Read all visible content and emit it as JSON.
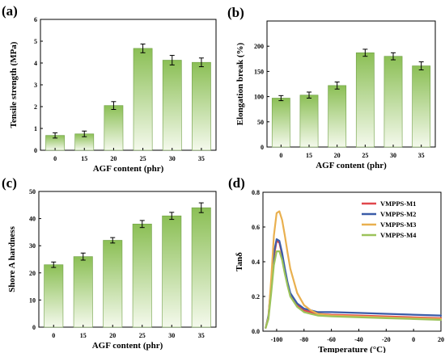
{
  "colors": {
    "bar_top": "#8bbf55",
    "bar_bottom": "#f4f9ec",
    "bar_stroke": "#6f9f45",
    "axis": "#000000"
  },
  "chart_data": [
    {
      "panel": "(a)",
      "type": "bar",
      "xlabel": "AGF content (phr)",
      "ylabel": "Tensile strength (MPa)",
      "categories": [
        "0",
        "15",
        "20",
        "25",
        "30",
        "35"
      ],
      "values": [
        0.68,
        0.75,
        2.05,
        4.67,
        4.13,
        4.03
      ],
      "errors": [
        0.12,
        0.13,
        0.18,
        0.2,
        0.22,
        0.2
      ],
      "ylim": [
        0,
        6
      ],
      "yticks": [
        0,
        1,
        2,
        3,
        4,
        5,
        6
      ]
    },
    {
      "panel": "(b)",
      "type": "bar",
      "xlabel": "AGF content (phr)",
      "ylabel": "Elongation break (%)",
      "categories": [
        "0",
        "15",
        "20",
        "25",
        "30",
        "35"
      ],
      "values": [
        97,
        103,
        122,
        187,
        180,
        161
      ],
      "errors": [
        5,
        6,
        7,
        7,
        7,
        8
      ],
      "ylim": [
        0,
        250
      ],
      "yticks": [
        0,
        50,
        100,
        150,
        200
      ]
    },
    {
      "panel": "(c)",
      "type": "bar",
      "xlabel": "AGF content (phr)",
      "ylabel": "Shore A hardness",
      "categories": [
        "0",
        "15",
        "20",
        "25",
        "30",
        "35"
      ],
      "values": [
        23,
        26,
        32,
        38,
        41,
        44
      ],
      "errors": [
        1.0,
        1.3,
        1.0,
        1.3,
        1.3,
        1.8
      ],
      "ylim": [
        0,
        50
      ],
      "yticks": [
        0,
        10,
        20,
        30,
        40,
        50
      ]
    },
    {
      "panel": "(d)",
      "type": "line",
      "xlabel": "Temperature (°C)",
      "ylabel": "Tanδ",
      "xlim": [
        -110,
        20
      ],
      "ylim": [
        0,
        0.8
      ],
      "xticks": [
        -100,
        -80,
        -60,
        -40,
        -20,
        0,
        20
      ],
      "yticks": [
        0.0,
        0.2,
        0.4,
        0.6,
        0.8
      ],
      "legend_position": "top-right",
      "series": [
        {
          "name": "VMPPS-M1",
          "color": "#e0474c",
          "x": [
            -108,
            -106,
            -104,
            -102,
            -100,
            -98,
            -96,
            -94,
            -92,
            -90,
            -85,
            -80,
            -75,
            -70,
            -60,
            -40,
            -20,
            0,
            20
          ],
          "y": [
            0.02,
            0.08,
            0.25,
            0.43,
            0.52,
            0.51,
            0.44,
            0.35,
            0.27,
            0.21,
            0.15,
            0.12,
            0.11,
            0.1,
            0.095,
            0.09,
            0.085,
            0.08,
            0.075
          ]
        },
        {
          "name": "VMPPS-M2",
          "color": "#3a5ca8",
          "x": [
            -108,
            -106,
            -104,
            -102,
            -100,
            -98,
            -96,
            -94,
            -92,
            -90,
            -85,
            -80,
            -75,
            -70,
            -60,
            -40,
            -20,
            0,
            20
          ],
          "y": [
            0.02,
            0.09,
            0.27,
            0.45,
            0.53,
            0.52,
            0.45,
            0.36,
            0.28,
            0.22,
            0.16,
            0.13,
            0.12,
            0.11,
            0.11,
            0.105,
            0.1,
            0.095,
            0.09
          ]
        },
        {
          "name": "VMPPS-M3",
          "color": "#e9b04f",
          "x": [
            -108,
            -106,
            -104,
            -102,
            -100,
            -98,
            -96,
            -94,
            -92,
            -90,
            -85,
            -80,
            -75,
            -70,
            -60,
            -40,
            -20,
            0,
            20
          ],
          "y": [
            0.02,
            0.08,
            0.3,
            0.55,
            0.68,
            0.69,
            0.64,
            0.55,
            0.45,
            0.36,
            0.22,
            0.15,
            0.12,
            0.1,
            0.09,
            0.085,
            0.08,
            0.075,
            0.07
          ]
        },
        {
          "name": "VMPPS-M4",
          "color": "#9cc35a",
          "x": [
            -108,
            -106,
            -104,
            -102,
            -100,
            -98,
            -96,
            -94,
            -92,
            -90,
            -85,
            -80,
            -75,
            -70,
            -60,
            -40,
            -20,
            0,
            20
          ],
          "y": [
            0.02,
            0.07,
            0.22,
            0.38,
            0.46,
            0.46,
            0.41,
            0.33,
            0.26,
            0.2,
            0.14,
            0.11,
            0.1,
            0.09,
            0.085,
            0.08,
            0.075,
            0.07,
            0.065
          ]
        }
      ]
    }
  ]
}
